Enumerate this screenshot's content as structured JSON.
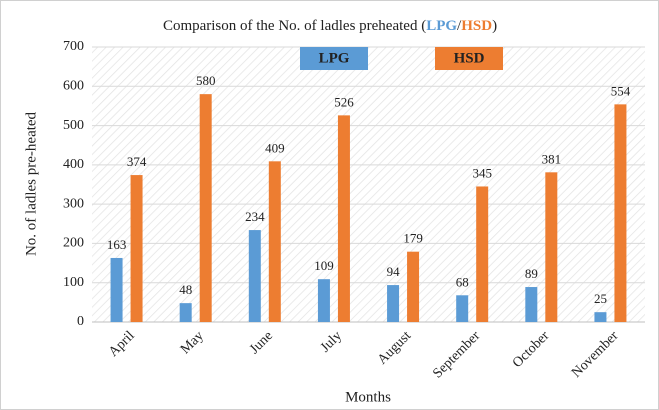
{
  "chart_data": {
    "type": "bar",
    "title": [
      "Comparison of the No. of ladles preheated (",
      "LPG",
      "/",
      "HSD",
      ")"
    ],
    "x_label": "Months",
    "y_label": "No. of ladles pre-heated",
    "categories": [
      "April",
      "May",
      "June",
      "July",
      "August",
      "September",
      "October",
      "November"
    ],
    "series": [
      {
        "name": "LPG",
        "color": "#5b9bd5",
        "values": [
          163,
          48,
          234,
          109,
          94,
          68,
          89,
          25
        ]
      },
      {
        "name": "HSD",
        "color": "#ed7d31",
        "values": [
          374,
          580,
          409,
          526,
          179,
          345,
          381,
          554
        ]
      }
    ],
    "ylim": [
      0,
      700
    ],
    "yticks": [
      0,
      100,
      200,
      300,
      400,
      500,
      600,
      700
    ],
    "grid": true,
    "legend": "top"
  }
}
